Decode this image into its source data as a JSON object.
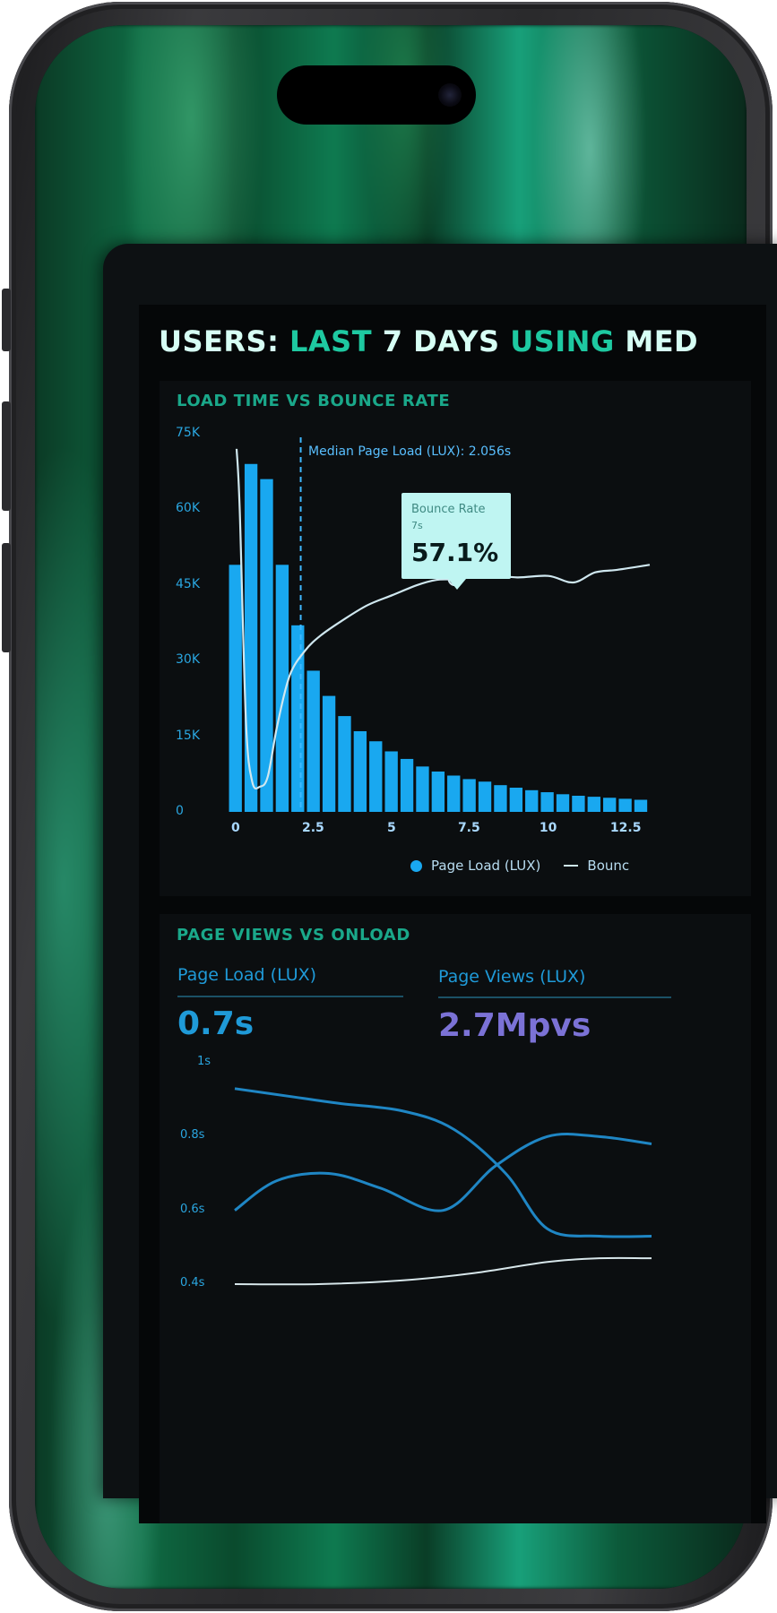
{
  "dashboard": {
    "title_parts": [
      {
        "text": "USERS: ",
        "tone": "white"
      },
      {
        "text": "LAST ",
        "tone": "teal"
      },
      {
        "text": "7 DAYS ",
        "tone": "white"
      },
      {
        "text": "USING ",
        "tone": "teal"
      },
      {
        "text": "MED",
        "tone": "white"
      }
    ]
  },
  "panel1": {
    "title": "LOAD TIME VS BOUNCE RATE",
    "median_label": "Median Page Load (LUX): 2.056s",
    "tooltip": {
      "label": "Bounce Rate",
      "sub": "7s",
      "value": "57.1%"
    },
    "legend": {
      "bar_label": "Page Load (LUX)",
      "line_label": "Bounc"
    }
  },
  "panel2": {
    "title": "PAGE VIEWS VS ONLOAD",
    "metric_1": {
      "label": "Page Load (LUX)",
      "value": "0.7s"
    },
    "metric_2": {
      "label": "Page Views (LUX)",
      "value": "2.7Mpvs"
    }
  },
  "colors": {
    "bar": "#19a8f0",
    "bounce_line": "#cfe7ef",
    "page_load_value": "#1f9ad8",
    "page_views_value": "#7b72d6",
    "line_2": "#1f86c4"
  },
  "chart_data": [
    {
      "type": "bar",
      "title": "LOAD TIME VS BOUNCE RATE",
      "y_ticks": [
        "75K",
        "60K",
        "45K",
        "30K",
        "15K",
        "0"
      ],
      "x_ticks": [
        "0",
        "2.5",
        "5",
        "7.5",
        "10",
        "12.5"
      ],
      "ylim": [
        0,
        75000
      ],
      "xlim": [
        0,
        13.25
      ],
      "series": [
        {
          "name": "Page Load (LUX)",
          "x": [
            0.25,
            0.75,
            1.25,
            1.75,
            2.25,
            2.75,
            3.25,
            3.75,
            4.25,
            4.75,
            5.25,
            5.75,
            6.25,
            6.75,
            7.25,
            7.75,
            8.25,
            8.75,
            9.25,
            9.75,
            10.25,
            10.75,
            11.25,
            11.75,
            12.25,
            12.75,
            13.25
          ],
          "values": [
            49000,
            69000,
            66000,
            49000,
            37000,
            28000,
            23000,
            19000,
            16000,
            14000,
            12000,
            10500,
            9000,
            8000,
            7200,
            6500,
            6000,
            5300,
            4800,
            4300,
            3900,
            3500,
            3200,
            3000,
            2800,
            2600,
            2400
          ]
        },
        {
          "name": "Bounc",
          "x": [
            0,
            0.1,
            0.3,
            0.5,
            0.75,
            1.0,
            1.3,
            1.7,
            2.2,
            2.7,
            3.4,
            4.2,
            5.0,
            5.8,
            6.4,
            7.0,
            8.0,
            9.0,
            10.0,
            10.8,
            11.5,
            12.2,
            13.25
          ],
          "values": [
            72000,
            60000,
            18000,
            6000,
            5000,
            7000,
            17000,
            27000,
            32000,
            35000,
            38000,
            41000,
            43000,
            45000,
            46000,
            46200,
            47000,
            46500,
            46800,
            45500,
            47500,
            48000,
            49000
          ]
        }
      ],
      "median_x": 2.056,
      "tooltip_x": 7.0
    },
    {
      "type": "line",
      "title": "PAGE VIEWS VS ONLOAD",
      "y_ticks": [
        "1s",
        "0.8s",
        "0.6s",
        "0.4s"
      ],
      "ylim": [
        0.4,
        1.0
      ],
      "series": [
        {
          "x": [
            0,
            0.5,
            1.0,
            1.6,
            2.1,
            2.6,
            3.0,
            3.5,
            4.0
          ],
          "values": [
            0.93,
            0.91,
            0.89,
            0.87,
            0.82,
            0.7,
            0.55,
            0.53,
            0.53
          ]
        },
        {
          "x": [
            0,
            0.4,
            0.9,
            1.4,
            2.0,
            2.5,
            3.0,
            3.5,
            4.0
          ],
          "values": [
            0.6,
            0.68,
            0.7,
            0.66,
            0.6,
            0.72,
            0.8,
            0.8,
            0.78
          ]
        },
        {
          "x": [
            0,
            0.8,
            1.6,
            2.3,
            3.0,
            3.5,
            4.0
          ],
          "values": [
            0.4,
            0.4,
            0.41,
            0.43,
            0.46,
            0.47,
            0.47
          ]
        }
      ]
    }
  ]
}
